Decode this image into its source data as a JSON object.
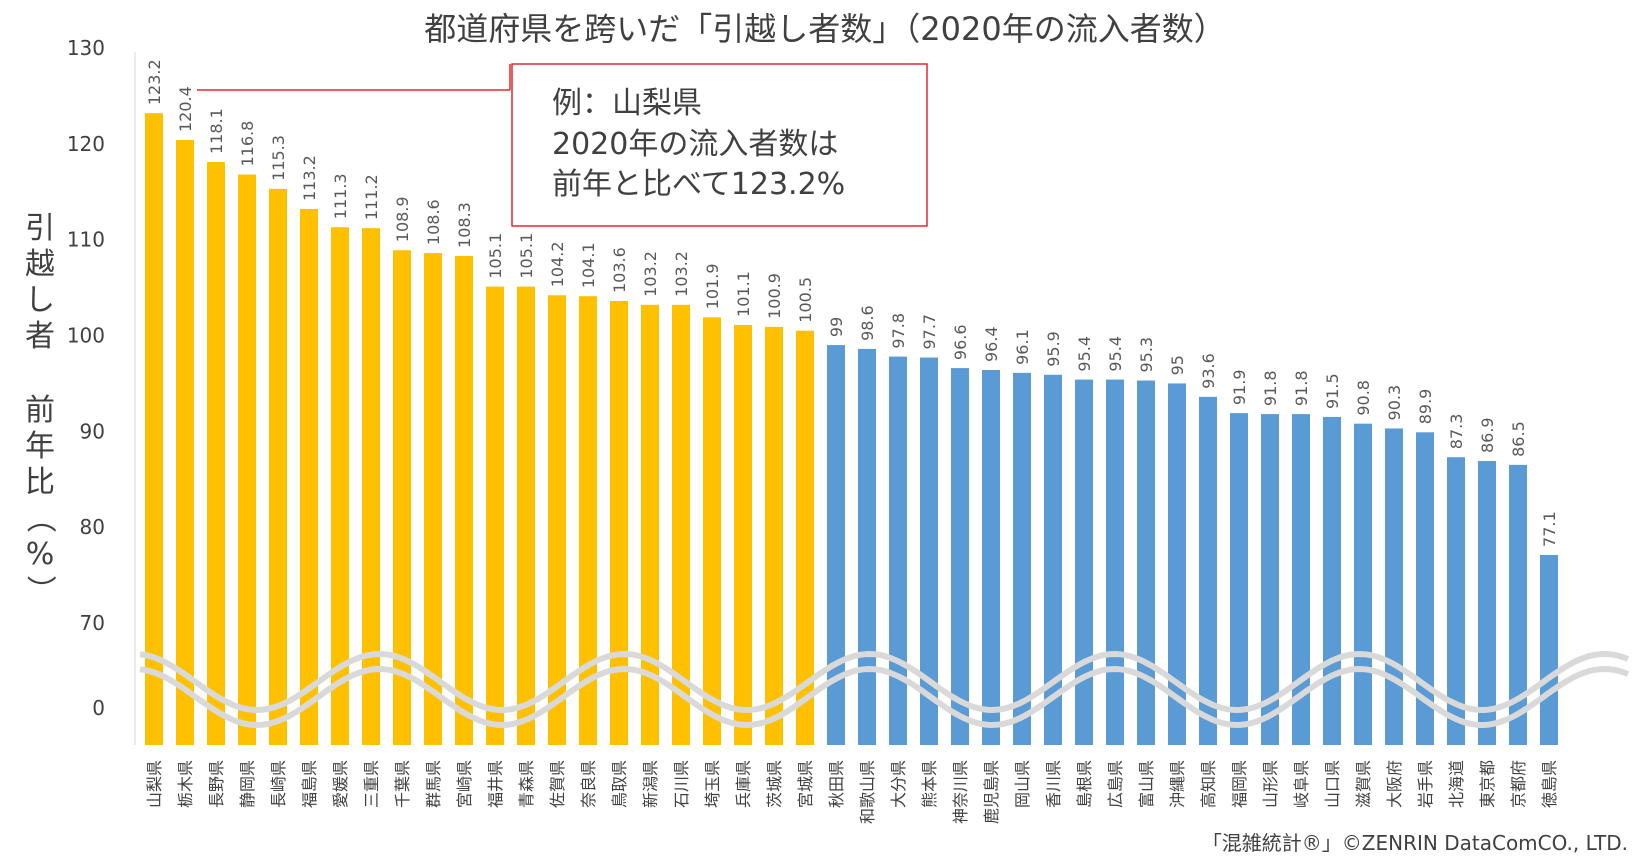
{
  "chart_data": {
    "type": "bar",
    "title": "都道府県を跨いだ「引越し者数」（2020年の流入者数）",
    "ylabel_top": "引越し者",
    "ylabel_bottom": "前年比（%）",
    "yticks": [
      "130",
      "120",
      "110",
      "100",
      "90",
      "80",
      "70",
      "0"
    ],
    "ylim": [
      65,
      130
    ],
    "axis_break": true,
    "categories": [
      "山梨県",
      "栃木県",
      "長野県",
      "静岡県",
      "長崎県",
      "福島県",
      "愛媛県",
      "三重県",
      "千葉県",
      "群馬県",
      "宮崎県",
      "福井県",
      "青森県",
      "佐賀県",
      "奈良県",
      "鳥取県",
      "新潟県",
      "石川県",
      "埼玉県",
      "兵庫県",
      "茨城県",
      "宮城県",
      "秋田県",
      "和歌山県",
      "大分県",
      "熊本県",
      "神奈川県",
      "鹿児島県",
      "岡山県",
      "香川県",
      "島根県",
      "広島県",
      "富山県",
      "沖縄県",
      "高知県",
      "福岡県",
      "山形県",
      "岐阜県",
      "山口県",
      "滋賀県",
      "大阪府",
      "岩手県",
      "北海道",
      "東京都",
      "京都府",
      "徳島県"
    ],
    "values": [
      123.2,
      120.4,
      118.1,
      116.8,
      115.3,
      113.2,
      111.3,
      111.2,
      108.9,
      108.6,
      108.3,
      105.1,
      105.1,
      104.2,
      104.1,
      103.6,
      103.2,
      103.2,
      101.9,
      101.1,
      100.9,
      100.5,
      99,
      98.6,
      97.8,
      97.7,
      96.6,
      96.4,
      96.1,
      95.9,
      95.4,
      95.4,
      95.3,
      95,
      93.6,
      91.9,
      91.8,
      91.8,
      91.5,
      90.8,
      90.3,
      89.9,
      87.3,
      86.9,
      86.5,
      77.1
    ],
    "value_labels": [
      "123.2",
      "120.4",
      "118.1",
      "116.8",
      "115.3",
      "113.2",
      "111.3",
      "111.2",
      "108.9",
      "108.6",
      "108.3",
      "105.1",
      "105.1",
      "104.2",
      "104.1",
      "103.6",
      "103.2",
      "103.2",
      "101.9",
      "101.1",
      "100.9",
      "100.5",
      "99",
      "98.6",
      "97.8",
      "97.7",
      "96.6",
      "96.4",
      "96.1",
      "95.9",
      "95.4",
      "95.4",
      "95.3",
      "95",
      "93.6",
      "91.9",
      "91.8",
      "91.8",
      "91.5",
      "90.8",
      "90.3",
      "89.9",
      "87.3",
      "86.9",
      "86.5",
      "77.1"
    ],
    "colors": {
      "increase": "#FFC000",
      "decrease": "#5B9BD5",
      "callout_border": "#E0282F",
      "break_wave": "#D9D9D9"
    }
  },
  "annotation": {
    "lines": [
      "例：山梨県",
      "2020年の流入者数は",
      "前年と比べて123.2%"
    ]
  },
  "credit": "「混雑統計®」©ZENRIN DataComCO., LTD."
}
